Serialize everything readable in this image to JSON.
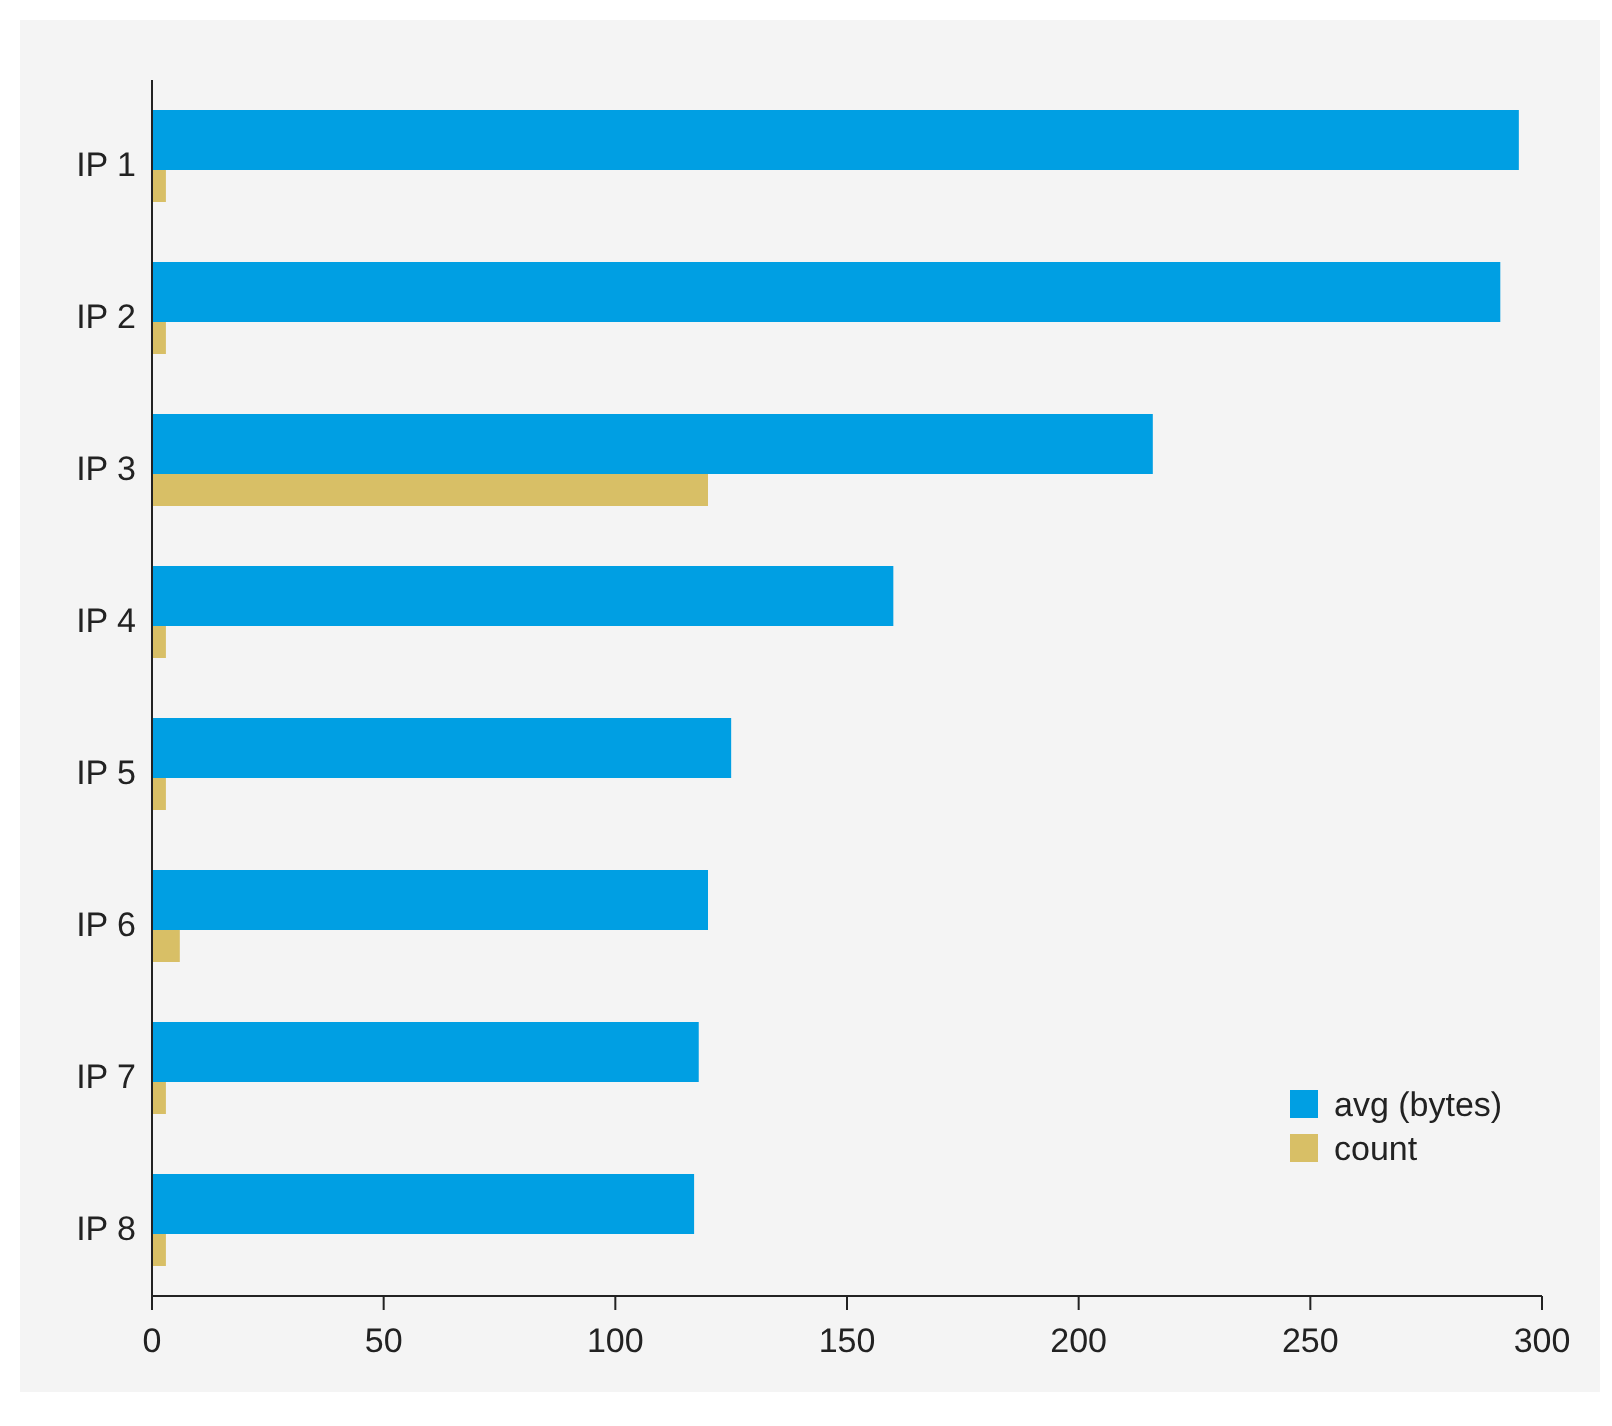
{
  "chart_data": {
    "type": "bar",
    "orientation": "horizontal",
    "categories": [
      "IP 1",
      "IP 2",
      "IP 3",
      "IP 4",
      "IP 5",
      "IP 6",
      "IP 7",
      "IP 8"
    ],
    "series": [
      {
        "name": "avg (bytes)",
        "color": "#009fe3",
        "values": [
          295,
          291,
          216,
          160,
          125,
          120,
          118,
          117
        ]
      },
      {
        "name": "count",
        "color": "#d8bf66",
        "values": [
          3,
          3,
          120,
          3,
          3,
          6,
          3,
          3
        ]
      }
    ],
    "xlim": [
      0,
      300
    ],
    "xticks": [
      0,
      50,
      100,
      150,
      200,
      250,
      300
    ],
    "grid": false,
    "legend": "bottom right"
  }
}
